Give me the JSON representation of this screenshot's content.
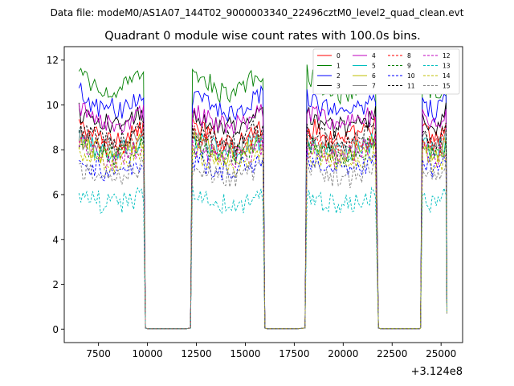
{
  "chart_data": {
    "type": "line",
    "suptitle": "Data file: modeM0/AS1A07_144T02_9000003340_22496cztM0_level2_quad_clean.evt",
    "title": "Quadrant 0 module wise count rates with 100.0s bins.",
    "xlabel": "",
    "ylabel": "",
    "x_offset_label": "+3.124e8",
    "xlim": [
      5750,
      26100
    ],
    "ylim": [
      -0.6,
      12.6
    ],
    "xticks": [
      7500,
      10000,
      12500,
      15000,
      17500,
      20000,
      22500,
      25000
    ],
    "xtick_labels": [
      "7500",
      "10000",
      "12500",
      "15000",
      "17500",
      "20000",
      "22500",
      "25000"
    ],
    "yticks": [
      0,
      2,
      4,
      6,
      8,
      10,
      12
    ],
    "ytick_labels": [
      "0",
      "2",
      "4",
      "6",
      "8",
      "10",
      "12"
    ],
    "bin_seconds": 100,
    "active_segments": [
      [
        6500,
        9800
      ],
      [
        12300,
        15900
      ],
      [
        18150,
        21700
      ],
      [
        24050,
        25250
      ]
    ],
    "gap_segments": [
      [
        10000,
        12200
      ],
      [
        16100,
        18050
      ],
      [
        21900,
        23950
      ]
    ],
    "series": [
      {
        "name": "0",
        "color": "#ff0000",
        "dashed": false,
        "base": 9.1
      },
      {
        "name": "1",
        "color": "#008000",
        "dashed": false,
        "base": 11.4
      },
      {
        "name": "2",
        "color": "#0000ff",
        "dashed": false,
        "base": 10.5
      },
      {
        "name": "3",
        "color": "#000000",
        "dashed": false,
        "base": 9.7
      },
      {
        "name": "4",
        "color": "#bf00bf",
        "dashed": false,
        "base": 9.8
      },
      {
        "name": "5",
        "color": "#00bfbf",
        "dashed": false,
        "base": 8.5
      },
      {
        "name": "6",
        "color": "#bfbf00",
        "dashed": false,
        "base": 8.4
      },
      {
        "name": "7",
        "color": "#808080",
        "dashed": false,
        "base": 8.6
      },
      {
        "name": "8",
        "color": "#ff0000",
        "dashed": true,
        "base": 8.7
      },
      {
        "name": "9",
        "color": "#008000",
        "dashed": true,
        "base": 8.3
      },
      {
        "name": "10",
        "color": "#0000ff",
        "dashed": true,
        "base": 7.6
      },
      {
        "name": "11",
        "color": "#000000",
        "dashed": true,
        "base": 9.0
      },
      {
        "name": "12",
        "color": "#bf00bf",
        "dashed": true,
        "base": 8.2
      },
      {
        "name": "13",
        "color": "#00bfbf",
        "dashed": true,
        "base": 6.0
      },
      {
        "name": "14",
        "color": "#bfbf00",
        "dashed": true,
        "base": 7.9
      },
      {
        "name": "15",
        "color": "#808080",
        "dashed": true,
        "base": 7.3
      }
    ]
  }
}
